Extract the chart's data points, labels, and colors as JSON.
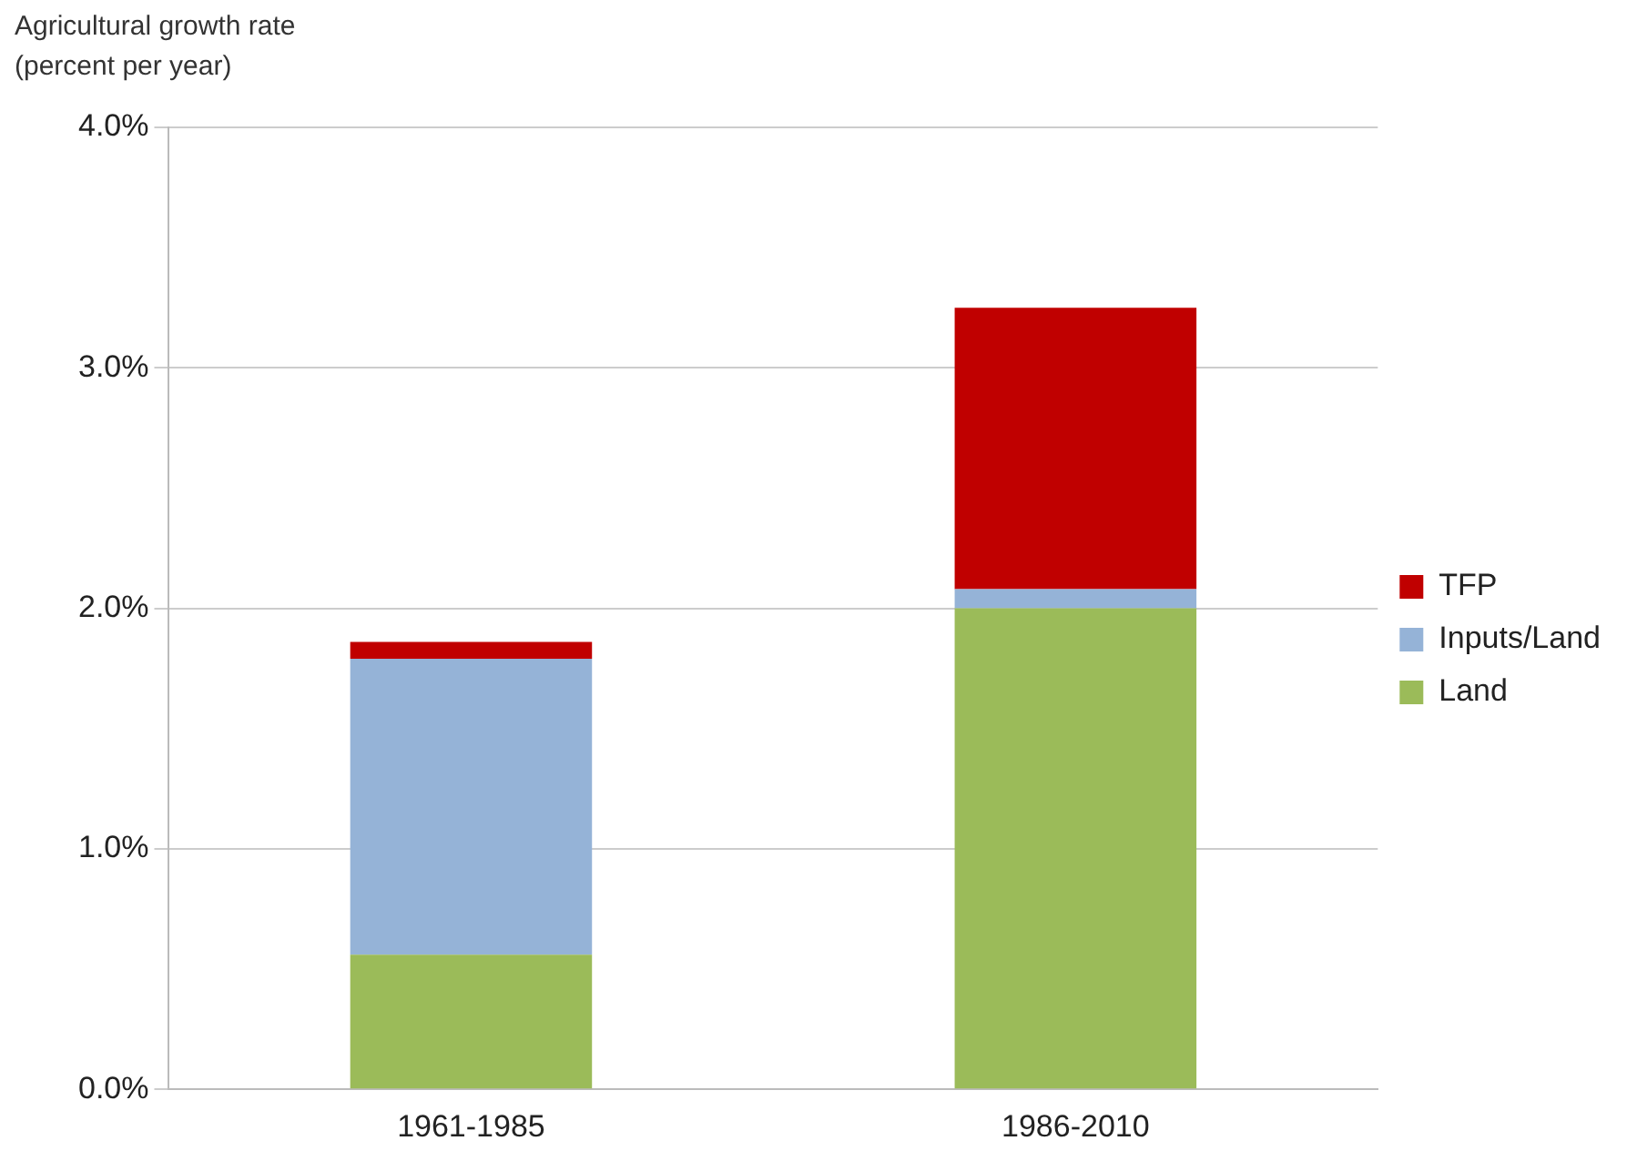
{
  "chart_data": {
    "type": "bar",
    "ylabel": "Agricultural growth rate\n(percent per year)",
    "categories": [
      "1961-1985",
      "1986-2010"
    ],
    "stacked": true,
    "series": [
      {
        "name": "Land",
        "color": "#9bbb59",
        "values": [
          0.56,
          2.0
        ]
      },
      {
        "name": "Inputs/Land",
        "color": "#95b3d7",
        "values": [
          1.23,
          0.08
        ]
      },
      {
        "name": "TFP",
        "color": "#c00000",
        "values": [
          0.07,
          1.17
        ]
      }
    ],
    "ylim": [
      0,
      4
    ],
    "yticks": [
      {
        "value": 0,
        "label": "0.0%"
      },
      {
        "value": 1,
        "label": "1.0%"
      },
      {
        "value": 2,
        "label": "2.0%"
      },
      {
        "value": 3,
        "label": "3.0%"
      },
      {
        "value": 4,
        "label": "4.0%"
      }
    ],
    "grid": "y",
    "legend": "right"
  }
}
